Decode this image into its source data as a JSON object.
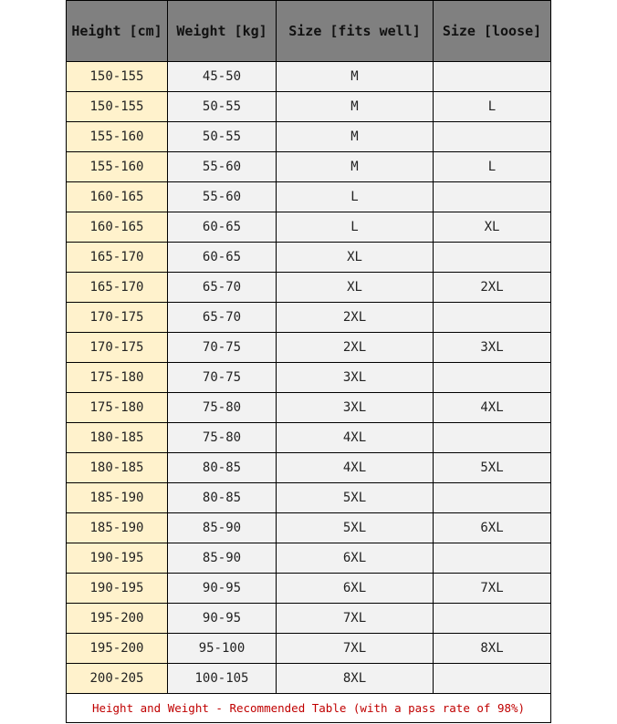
{
  "headers": [
    "Height [cm]",
    "Weight [kg]",
    "Size [fits well]",
    "Size [loose]"
  ],
  "rows": [
    [
      "150-155",
      "45-50",
      "M",
      ""
    ],
    [
      "150-155",
      "50-55",
      "M",
      "L"
    ],
    [
      "155-160",
      "50-55",
      "M",
      ""
    ],
    [
      "155-160",
      "55-60",
      "M",
      "L"
    ],
    [
      "160-165",
      "55-60",
      "L",
      ""
    ],
    [
      "160-165",
      "60-65",
      "L",
      "XL"
    ],
    [
      "165-170",
      "60-65",
      "XL",
      ""
    ],
    [
      "165-170",
      "65-70",
      "XL",
      "2XL"
    ],
    [
      "170-175",
      "65-70",
      "2XL",
      ""
    ],
    [
      "170-175",
      "70-75",
      "2XL",
      "3XL"
    ],
    [
      "175-180",
      "70-75",
      "3XL",
      ""
    ],
    [
      "175-180",
      "75-80",
      "3XL",
      "4XL"
    ],
    [
      "180-185",
      "75-80",
      "4XL",
      ""
    ],
    [
      "180-185",
      "80-85",
      "4XL",
      "5XL"
    ],
    [
      "185-190",
      "80-85",
      "5XL",
      ""
    ],
    [
      "185-190",
      "85-90",
      "5XL",
      "6XL"
    ],
    [
      "190-195",
      "85-90",
      "6XL",
      ""
    ],
    [
      "190-195",
      "90-95",
      "6XL",
      "7XL"
    ],
    [
      "195-200",
      "90-95",
      "7XL",
      ""
    ],
    [
      "195-200",
      "95-100",
      "7XL",
      "8XL"
    ],
    [
      "200-205",
      "100-105",
      "8XL",
      ""
    ]
  ],
  "footer": "Height and Weight - Recommended Table (with a pass rate of 98%)",
  "colors": {
    "header": "#808080",
    "height_column": "#fff2cc",
    "cells": "#f2f2f2",
    "footer_text": "#c00000"
  }
}
